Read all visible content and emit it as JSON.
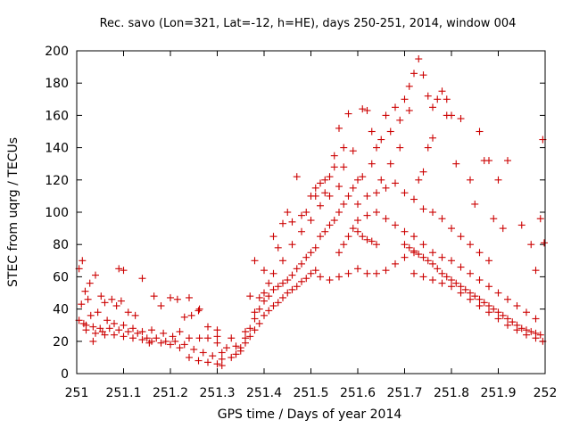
{
  "chart_data": {
    "type": "scatter",
    "title": "Rec. savo (Lon=321, Lat=-12, h=HE), days 250-251, 2014, window 004",
    "xlabel": "GPS time / Days of year 2014",
    "ylabel": "STEC from uqrg / TECUs",
    "xlim": [
      251,
      252
    ],
    "ylim": [
      0,
      200
    ],
    "xticks": [
      "251",
      "251.1",
      "251.2",
      "251.3",
      "251.4",
      "251.5",
      "251.6",
      "251.7",
      "251.8",
      "251.9",
      "252"
    ],
    "yticks": [
      "0",
      "20",
      "40",
      "60",
      "80",
      "100",
      "120",
      "140",
      "160",
      "180",
      "200"
    ],
    "grid": false,
    "marker": "+",
    "color": "#cc0000",
    "series": [
      {
        "points": [
          [
            251.005,
            65
          ],
          [
            251.012,
            70
          ],
          [
            251.028,
            56
          ],
          [
            251.04,
            61
          ],
          [
            251.018,
            51
          ],
          [
            251.024,
            46
          ],
          [
            251.052,
            48
          ],
          [
            251.06,
            44
          ],
          [
            251.075,
            46
          ],
          [
            251.085,
            42
          ],
          [
            251.095,
            45
          ],
          [
            251.11,
            38
          ],
          [
            251.125,
            36
          ],
          [
            251.165,
            48
          ],
          [
            251.18,
            42
          ],
          [
            251.2,
            47
          ],
          [
            251.215,
            46
          ],
          [
            251.23,
            35
          ],
          [
            251.245,
            36
          ],
          [
            251.262,
            40
          ],
          [
            251.28,
            29
          ],
          [
            251.3,
            27
          ],
          [
            251.01,
            43
          ],
          [
            251.03,
            36
          ],
          [
            251.045,
            38
          ],
          [
            251.065,
            33
          ],
          [
            251.08,
            31
          ],
          [
            251.1,
            30
          ],
          [
            251.12,
            28
          ],
          [
            251.14,
            26
          ],
          [
            251.16,
            27
          ],
          [
            251.185,
            25
          ],
          [
            251.205,
            23
          ],
          [
            251.22,
            26
          ],
          [
            251.24,
            22
          ],
          [
            251.262,
            22
          ],
          [
            251.28,
            22
          ],
          [
            251.3,
            19
          ],
          [
            251.005,
            33
          ],
          [
            251.02,
            30
          ],
          [
            251.035,
            29
          ],
          [
            251.05,
            28
          ],
          [
            251.07,
            28
          ],
          [
            251.09,
            27
          ],
          [
            251.11,
            26
          ],
          [
            251.13,
            25
          ],
          [
            251.15,
            22
          ],
          [
            251.17,
            22
          ],
          [
            251.19,
            20
          ],
          [
            251.21,
            20
          ],
          [
            251.23,
            18
          ],
          [
            251.25,
            15
          ],
          [
            251.27,
            13
          ],
          [
            251.29,
            11
          ],
          [
            251.31,
            9
          ],
          [
            251.02,
            27
          ],
          [
            251.04,
            25
          ],
          [
            251.06,
            24
          ],
          [
            251.08,
            24
          ],
          [
            251.1,
            23
          ],
          [
            251.12,
            22
          ],
          [
            251.14,
            21
          ],
          [
            251.16,
            20
          ],
          [
            251.18,
            19
          ],
          [
            251.2,
            18
          ],
          [
            251.22,
            16
          ],
          [
            251.24,
            10
          ],
          [
            251.26,
            8
          ],
          [
            251.28,
            7
          ],
          [
            251.3,
            6
          ],
          [
            251.31,
            5
          ],
          [
            251.035,
            20
          ],
          [
            251.155,
            19
          ],
          [
            251.015,
            31
          ],
          [
            251.055,
            26
          ],
          [
            251.1,
            64
          ],
          [
            251.09,
            65
          ],
          [
            251.14,
            59
          ],
          [
            251.24,
            47
          ],
          [
            251.26,
            39
          ],
          [
            251.31,
            13
          ],
          [
            251.33,
            10
          ],
          [
            251.34,
            12
          ],
          [
            251.35,
            14
          ],
          [
            251.36,
            19
          ],
          [
            251.37,
            23
          ],
          [
            251.38,
            27
          ],
          [
            251.39,
            31
          ],
          [
            251.4,
            36
          ],
          [
            251.41,
            39
          ],
          [
            251.42,
            42
          ],
          [
            251.43,
            44
          ],
          [
            251.44,
            47
          ],
          [
            251.45,
            50
          ],
          [
            251.46,
            52
          ],
          [
            251.47,
            54
          ],
          [
            251.48,
            57
          ],
          [
            251.49,
            59
          ],
          [
            251.5,
            62
          ],
          [
            251.51,
            64
          ],
          [
            251.35,
            16
          ],
          [
            251.36,
            22
          ],
          [
            251.37,
            28
          ],
          [
            251.38,
            34
          ],
          [
            251.39,
            40
          ],
          [
            251.4,
            45
          ],
          [
            251.41,
            48
          ],
          [
            251.42,
            52
          ],
          [
            251.43,
            54
          ],
          [
            251.44,
            56
          ],
          [
            251.45,
            58
          ],
          [
            251.46,
            61
          ],
          [
            251.47,
            65
          ],
          [
            251.48,
            68
          ],
          [
            251.49,
            72
          ],
          [
            251.5,
            75
          ],
          [
            251.51,
            78
          ],
          [
            251.36,
            26
          ],
          [
            251.38,
            38
          ],
          [
            251.4,
            50
          ],
          [
            251.42,
            62
          ],
          [
            251.44,
            70
          ],
          [
            251.46,
            80
          ],
          [
            251.48,
            88
          ],
          [
            251.5,
            95
          ],
          [
            251.52,
            104
          ],
          [
            251.54,
            110
          ],
          [
            251.56,
            116
          ],
          [
            251.38,
            70
          ],
          [
            251.4,
            64
          ],
          [
            251.42,
            85
          ],
          [
            251.44,
            93
          ],
          [
            251.46,
            94
          ],
          [
            251.48,
            98
          ],
          [
            251.5,
            110
          ],
          [
            251.52,
            118
          ],
          [
            251.54,
            122
          ],
          [
            251.47,
            122
          ],
          [
            251.53,
            120
          ],
          [
            251.51,
            115
          ],
          [
            251.52,
            85
          ],
          [
            251.53,
            88
          ],
          [
            251.54,
            92
          ],
          [
            251.55,
            95
          ],
          [
            251.56,
            100
          ],
          [
            251.57,
            105
          ],
          [
            251.58,
            110
          ],
          [
            251.59,
            115
          ],
          [
            251.6,
            120
          ],
          [
            251.61,
            122
          ],
          [
            251.55,
            135
          ],
          [
            251.56,
            152
          ],
          [
            251.57,
            140
          ],
          [
            251.58,
            161
          ],
          [
            251.56,
            75
          ],
          [
            251.57,
            80
          ],
          [
            251.58,
            85
          ],
          [
            251.59,
            90
          ],
          [
            251.6,
            88
          ],
          [
            251.61,
            85
          ],
          [
            251.62,
            83
          ],
          [
            251.63,
            82
          ],
          [
            251.64,
            80
          ],
          [
            251.52,
            60
          ],
          [
            251.54,
            58
          ],
          [
            251.56,
            60
          ],
          [
            251.58,
            62
          ],
          [
            251.6,
            65
          ],
          [
            251.62,
            62
          ],
          [
            251.64,
            62
          ],
          [
            251.66,
            64
          ],
          [
            251.68,
            68
          ],
          [
            251.7,
            72
          ],
          [
            251.72,
            75
          ],
          [
            251.61,
            164
          ],
          [
            251.62,
            163
          ],
          [
            251.63,
            150
          ],
          [
            251.64,
            140
          ],
          [
            251.65,
            145
          ],
          [
            251.66,
            160
          ],
          [
            251.67,
            150
          ],
          [
            251.68,
            165
          ],
          [
            251.69,
            157
          ],
          [
            251.7,
            170
          ],
          [
            251.71,
            178
          ],
          [
            251.72,
            186
          ],
          [
            251.73,
            195
          ],
          [
            251.74,
            185
          ],
          [
            251.75,
            172
          ],
          [
            251.76,
            165
          ],
          [
            251.77,
            170
          ],
          [
            251.78,
            175
          ],
          [
            251.79,
            160
          ],
          [
            251.81,
            130
          ],
          [
            251.6,
            105
          ],
          [
            251.62,
            110
          ],
          [
            251.64,
            112
          ],
          [
            251.66,
            115
          ],
          [
            251.68,
            118
          ],
          [
            251.7,
            112
          ],
          [
            251.72,
            108
          ],
          [
            251.74,
            102
          ],
          [
            251.76,
            100
          ],
          [
            251.78,
            96
          ],
          [
            251.8,
            90
          ],
          [
            251.82,
            85
          ],
          [
            251.84,
            80
          ],
          [
            251.86,
            75
          ],
          [
            251.88,
            70
          ],
          [
            251.6,
            95
          ],
          [
            251.62,
            98
          ],
          [
            251.64,
            100
          ],
          [
            251.66,
            96
          ],
          [
            251.68,
            92
          ],
          [
            251.7,
            88
          ],
          [
            251.72,
            85
          ],
          [
            251.74,
            80
          ],
          [
            251.76,
            75
          ],
          [
            251.78,
            72
          ],
          [
            251.8,
            70
          ],
          [
            251.82,
            66
          ],
          [
            251.84,
            62
          ],
          [
            251.86,
            58
          ],
          [
            251.88,
            54
          ],
          [
            251.9,
            50
          ],
          [
            251.92,
            46
          ],
          [
            251.94,
            42
          ],
          [
            251.96,
            38
          ],
          [
            251.98,
            34
          ],
          [
            251.7,
            80
          ],
          [
            251.71,
            78
          ],
          [
            251.72,
            76
          ],
          [
            251.73,
            74
          ],
          [
            251.74,
            72
          ],
          [
            251.75,
            70
          ],
          [
            251.76,
            68
          ],
          [
            251.77,
            65
          ],
          [
            251.78,
            62
          ],
          [
            251.79,
            60
          ],
          [
            251.8,
            58
          ],
          [
            251.81,
            56
          ],
          [
            251.82,
            54
          ],
          [
            251.83,
            52
          ],
          [
            251.84,
            50
          ],
          [
            251.85,
            48
          ],
          [
            251.86,
            46
          ],
          [
            251.87,
            44
          ],
          [
            251.88,
            42
          ],
          [
            251.89,
            40
          ],
          [
            251.9,
            38
          ],
          [
            251.91,
            36
          ],
          [
            251.92,
            34
          ],
          [
            251.93,
            32
          ],
          [
            251.94,
            30
          ],
          [
            251.95,
            28
          ],
          [
            251.96,
            27
          ],
          [
            251.97,
            26
          ],
          [
            251.98,
            25
          ],
          [
            251.99,
            24
          ],
          [
            251.72,
            62
          ],
          [
            251.74,
            60
          ],
          [
            251.76,
            58
          ],
          [
            251.78,
            56
          ],
          [
            251.8,
            54
          ],
          [
            251.82,
            50
          ],
          [
            251.84,
            46
          ],
          [
            251.86,
            42
          ],
          [
            251.88,
            38
          ],
          [
            251.9,
            34
          ],
          [
            251.92,
            30
          ],
          [
            251.94,
            27
          ],
          [
            251.96,
            24
          ],
          [
            251.98,
            22
          ],
          [
            251.995,
            20
          ],
          [
            251.82,
            158
          ],
          [
            251.84,
            120
          ],
          [
            251.85,
            105
          ],
          [
            251.86,
            150
          ],
          [
            251.87,
            132
          ],
          [
            251.88,
            132
          ],
          [
            251.89,
            96
          ],
          [
            251.9,
            120
          ],
          [
            251.91,
            90
          ],
          [
            251.92,
            132
          ],
          [
            251.95,
            92
          ],
          [
            251.97,
            80
          ],
          [
            251.98,
            64
          ],
          [
            251.99,
            96
          ],
          [
            251.995,
            145
          ],
          [
            251.998,
            81
          ],
          [
            251.8,
            160
          ],
          [
            251.79,
            170
          ],
          [
            251.76,
            146
          ],
          [
            251.75,
            140
          ],
          [
            251.74,
            125
          ],
          [
            251.73,
            120
          ],
          [
            251.71,
            163
          ],
          [
            251.69,
            140
          ],
          [
            251.67,
            130
          ],
          [
            251.65,
            120
          ],
          [
            251.63,
            130
          ],
          [
            251.59,
            138
          ],
          [
            251.57,
            128
          ],
          [
            251.55,
            128
          ],
          [
            251.53,
            112
          ],
          [
            251.51,
            110
          ],
          [
            251.49,
            100
          ],
          [
            251.45,
            100
          ],
          [
            251.43,
            78
          ],
          [
            251.41,
            56
          ],
          [
            251.39,
            47
          ],
          [
            251.37,
            48
          ],
          [
            251.33,
            22
          ],
          [
            251.34,
            17
          ],
          [
            251.32,
            16
          ],
          [
            251.3,
            23
          ]
        ]
      }
    ]
  }
}
